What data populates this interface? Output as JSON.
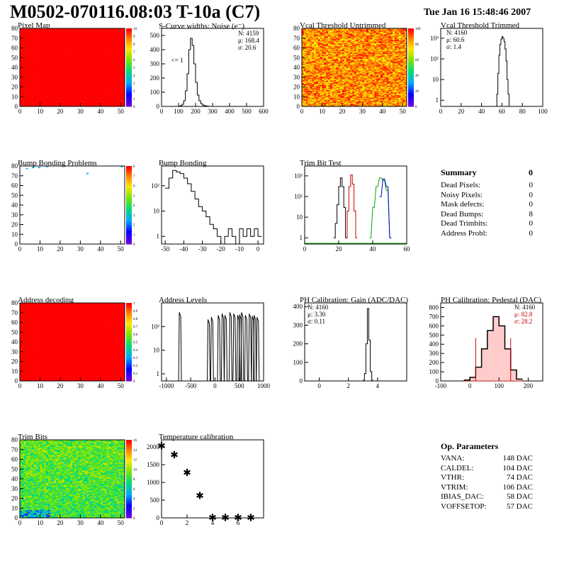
{
  "header": {
    "title": "M0502-070116.08:03 T-10a (C7)",
    "date": "Tue Jan 16 15:48:46 2007"
  },
  "panels": {
    "pixel_map": {
      "title": "Pixel Map",
      "xticks": [
        "0",
        "10",
        "20",
        "30",
        "40",
        "50"
      ],
      "yticks": [
        "0",
        "10",
        "20",
        "30",
        "40",
        "50",
        "60",
        "70",
        "80"
      ],
      "zticks": [
        "0",
        "1",
        "2",
        "3",
        "4",
        "5",
        "6",
        "7",
        "8",
        "9",
        "10"
      ]
    },
    "scurve": {
      "title": "S-Curve widths: Noise (e⁻)",
      "stats": {
        "n": "N: 4159",
        "mu": "μ: 168.4",
        "sigma": "σ: 20.6"
      },
      "underflow_label": "<= 1",
      "xticks": [
        "0",
        "100",
        "200",
        "300",
        "400",
        "500",
        "600"
      ],
      "yticks": [
        "0",
        "100",
        "200",
        "300",
        "400",
        "500"
      ]
    },
    "vcal_untrimmed": {
      "title": "Vcal Threshold Untrimmed",
      "xticks": [
        "0",
        "10",
        "20",
        "30",
        "40",
        "50"
      ],
      "yticks": [
        "0",
        "10",
        "20",
        "30",
        "40",
        "50",
        "60",
        "70",
        "80"
      ],
      "zticks": [
        "0",
        "20",
        "40",
        "60",
        "80",
        "100"
      ]
    },
    "vcal_trimmed": {
      "title": "Vcal Threshold Trimmed",
      "stats": {
        "n": "N: 4160",
        "mu": "μ: 60.6",
        "sigma": "σ:  1.4"
      },
      "xticks": [
        "0",
        "20",
        "40",
        "60",
        "80",
        "100"
      ],
      "yticks": [
        "1",
        "10",
        "10²",
        "10³"
      ]
    },
    "bump_problems": {
      "title": "Bump Bonding Problems",
      "xticks": [
        "0",
        "10",
        "20",
        "30",
        "40",
        "50"
      ],
      "yticks": [
        "0",
        "10",
        "20",
        "30",
        "40",
        "50",
        "60",
        "70",
        "80"
      ],
      "zticks": [
        "0",
        "1",
        "2",
        "3",
        "4",
        "5",
        "6",
        "7",
        "8"
      ]
    },
    "bump_bonding": {
      "title": "Bump Bonding",
      "xticks": [
        "-50",
        "-40",
        "-30",
        "-20",
        "-10",
        "0"
      ],
      "yticks": [
        "1",
        "10",
        "10²"
      ]
    },
    "trim_bit": {
      "title": "Trim Bit Test",
      "xticks": [
        "0",
        "20",
        "40",
        "60"
      ],
      "yticks": [
        "1",
        "10",
        "10²",
        "10³"
      ]
    },
    "address_decoding": {
      "title": "Address decoding",
      "xticks": [
        "0",
        "10",
        "20",
        "30",
        "40",
        "50"
      ],
      "yticks": [
        "0",
        "10",
        "20",
        "30",
        "40",
        "50",
        "60",
        "70",
        "80"
      ],
      "zticks": [
        "0",
        "0.1",
        "0.2",
        "0.3",
        "0.4",
        "0.5",
        "0.6",
        "0.7",
        "0.8",
        "0.9",
        "1"
      ]
    },
    "address_levels": {
      "title": "Address Levels",
      "xticks": [
        "-1000",
        "-500",
        "0",
        "500",
        "1000"
      ],
      "yticks": [
        "1",
        "10",
        "10²"
      ]
    },
    "ph_gain": {
      "title": "PH Calibration: Gain (ADC/DAC)",
      "stats": {
        "n": "N: 4160",
        "mu": "μ: 3.30",
        "sigma": "σ: 0.11"
      },
      "xticks": [
        "0",
        "2",
        "4"
      ],
      "yticks": [
        "0",
        "100",
        "200",
        "300",
        "400"
      ]
    },
    "ph_pedestal": {
      "title": "PH Calibration: Pedestal (DAC)",
      "stats": {
        "n": "N: 4160",
        "mu": "μ: 82.8",
        "sigma": "σ: 28.2"
      },
      "xticks": [
        "-100",
        "0",
        "100",
        "200"
      ],
      "yticks": [
        "0",
        "100",
        "200",
        "300",
        "400",
        "500",
        "600",
        "700",
        "800"
      ]
    },
    "trim_bits": {
      "title": "Trim Bits",
      "xticks": [
        "0",
        "10",
        "20",
        "30",
        "40",
        "50"
      ],
      "yticks": [
        "0",
        "10",
        "20",
        "30",
        "40",
        "50",
        "60",
        "70",
        "80"
      ],
      "zticks": [
        "0",
        "2",
        "4",
        "6",
        "8",
        "10",
        "12",
        "14",
        "16"
      ]
    },
    "temperature": {
      "title": "Temperature calibration",
      "xticks": [
        "0",
        "2",
        "4",
        "6"
      ],
      "yticks": [
        "0",
        "500",
        "1000",
        "1500",
        "2000"
      ]
    }
  },
  "summary": {
    "title": "Summary",
    "total": "0",
    "rows": [
      {
        "label": "Dead Pixels:",
        "value": "0"
      },
      {
        "label": "Noisy Pixels:",
        "value": "0"
      },
      {
        "label": "Mask defects:",
        "value": "0"
      },
      {
        "label": "Dead Bumps:",
        "value": "8"
      },
      {
        "label": "Dead Trimbits:",
        "value": "0"
      },
      {
        "label": "Address Probl:",
        "value": "0"
      }
    ]
  },
  "op_params": {
    "title": "Op. Parameters",
    "rows": [
      {
        "label": "VANA:",
        "value": "148 DAC"
      },
      {
        "label": "CALDEL:",
        "value": "104 DAC"
      },
      {
        "label": "VTHR:",
        "value": "74 DAC"
      },
      {
        "label": "VTRIM:",
        "value": "106 DAC"
      },
      {
        "label": "IBIAS_DAC:",
        "value": "58 DAC"
      },
      {
        "label": "VOFFSETOP:",
        "value": "57 DAC"
      }
    ]
  },
  "chart_data": [
    {
      "type": "heatmap",
      "title": "Pixel Map",
      "xlim": [
        0,
        52
      ],
      "ylim": [
        0,
        80
      ],
      "zlim": [
        0,
        10
      ],
      "uniform_value": 10,
      "color": "#ff0000"
    },
    {
      "type": "bar",
      "title": "S-Curve widths: Noise (e⁻)",
      "xlim": [
        0,
        600
      ],
      "ylim": [
        0,
        550
      ],
      "x": [
        100,
        110,
        120,
        130,
        140,
        150,
        160,
        170,
        180,
        190,
        200,
        210,
        220,
        230,
        240,
        250,
        260,
        270,
        280
      ],
      "values": [
        2,
        5,
        15,
        40,
        110,
        230,
        400,
        480,
        430,
        300,
        170,
        80,
        40,
        20,
        10,
        5,
        3,
        1,
        0
      ]
    },
    {
      "type": "heatmap",
      "title": "Vcal Threshold Untrimmed",
      "xlim": [
        0,
        52
      ],
      "ylim": [
        0,
        80
      ],
      "zlim": [
        0,
        120
      ]
    },
    {
      "type": "bar",
      "title": "Vcal Threshold Trimmed",
      "xlim": [
        0,
        100
      ],
      "log_y": true,
      "x": [
        55,
        56,
        57,
        58,
        59,
        60,
        61,
        62,
        63,
        64,
        65,
        66
      ],
      "values": [
        2,
        20,
        150,
        500,
        900,
        1200,
        1000,
        700,
        300,
        80,
        10,
        2
      ]
    },
    {
      "type": "heatmap",
      "title": "Bump Bonding Problems",
      "xlim": [
        0,
        52
      ],
      "ylim": [
        0,
        80
      ],
      "zlim": [
        0,
        8
      ]
    },
    {
      "type": "bar",
      "title": "Bump Bonding",
      "xlim": [
        -52,
        3
      ],
      "log_y": true,
      "x": [
        -50,
        -48,
        -46,
        -44,
        -42,
        -40,
        -38,
        -36,
        -34,
        -32,
        -30,
        -28,
        -26,
        -24,
        -22,
        -20,
        -18,
        -16,
        -14,
        -12,
        -10,
        -8,
        -6,
        -4,
        -2,
        0
      ],
      "values": [
        80,
        200,
        400,
        350,
        300,
        200,
        120,
        60,
        30,
        15,
        10,
        6,
        3,
        2,
        1,
        0,
        1,
        2,
        1,
        0,
        2,
        1,
        2,
        1,
        2,
        1
      ]
    },
    {
      "type": "line",
      "title": "Trim Bit Test",
      "xlim": [
        0,
        60
      ],
      "log_y": true,
      "series": [
        {
          "color": "#000000",
          "x": [
            17,
            18,
            19,
            20,
            21,
            22,
            23,
            24
          ],
          "values": [
            1,
            5,
            40,
            300,
            800,
            300,
            30,
            1
          ]
        },
        {
          "color": "#cc0000",
          "x": [
            24,
            25,
            26,
            27,
            28,
            29,
            30
          ],
          "values": [
            1,
            20,
            300,
            1100,
            400,
            20,
            1
          ]
        },
        {
          "color": "#00aa00",
          "x": [
            38,
            40,
            42,
            44,
            46,
            48,
            50
          ],
          "values": [
            1,
            30,
            300,
            800,
            600,
            200,
            1
          ]
        },
        {
          "color": "#0000cc",
          "x": [
            44,
            46,
            48,
            50
          ],
          "values": [
            100,
            700,
            300,
            1
          ]
        }
      ]
    },
    {
      "type": "heatmap",
      "title": "Address decoding",
      "xlim": [
        0,
        52
      ],
      "ylim": [
        0,
        80
      ],
      "zlim": [
        0,
        1
      ],
      "uniform_value": 1,
      "color": "#ff0000"
    },
    {
      "type": "bar",
      "title": "Address Levels",
      "xlim": [
        -1100,
        1000
      ],
      "log_y": true,
      "peaks_x": [
        -720,
        -130,
        -60,
        80,
        160,
        220,
        320,
        400,
        480,
        520,
        560,
        640,
        720,
        780,
        820,
        880
      ],
      "peaks_y": [
        400,
        200,
        250,
        300,
        350,
        300,
        400,
        350,
        300,
        320,
        400,
        300,
        350,
        280,
        300,
        250
      ]
    },
    {
      "type": "bar",
      "title": "PH Calibration: Gain (ADC/DAC)",
      "xlim": [
        -1,
        6
      ],
      "ylim": [
        0,
        420
      ],
      "x": [
        3.0,
        3.1,
        3.2,
        3.3,
        3.4,
        3.5,
        3.6
      ],
      "values": [
        5,
        40,
        200,
        390,
        220,
        50,
        5
      ]
    },
    {
      "type": "bar",
      "title": "PH Calibration: Pedestal (DAC)",
      "xlim": [
        -100,
        250
      ],
      "ylim": [
        0,
        850
      ],
      "x": [
        -20,
        0,
        20,
        40,
        60,
        80,
        100,
        120,
        140,
        160
      ],
      "values": [
        10,
        40,
        150,
        350,
        550,
        700,
        600,
        350,
        120,
        20
      ]
    },
    {
      "type": "heatmap",
      "title": "Trim Bits",
      "xlim": [
        0,
        52
      ],
      "ylim": [
        0,
        80
      ],
      "zlim": [
        0,
        16
      ]
    },
    {
      "type": "scatter",
      "title": "Temperature calibration",
      "xlim": [
        0,
        8
      ],
      "ylim": [
        0,
        2200
      ],
      "x": [
        0,
        1,
        2,
        3,
        4,
        5,
        6,
        7
      ],
      "y": [
        2050,
        1800,
        1300,
        650,
        30,
        30,
        30,
        30
      ]
    }
  ]
}
